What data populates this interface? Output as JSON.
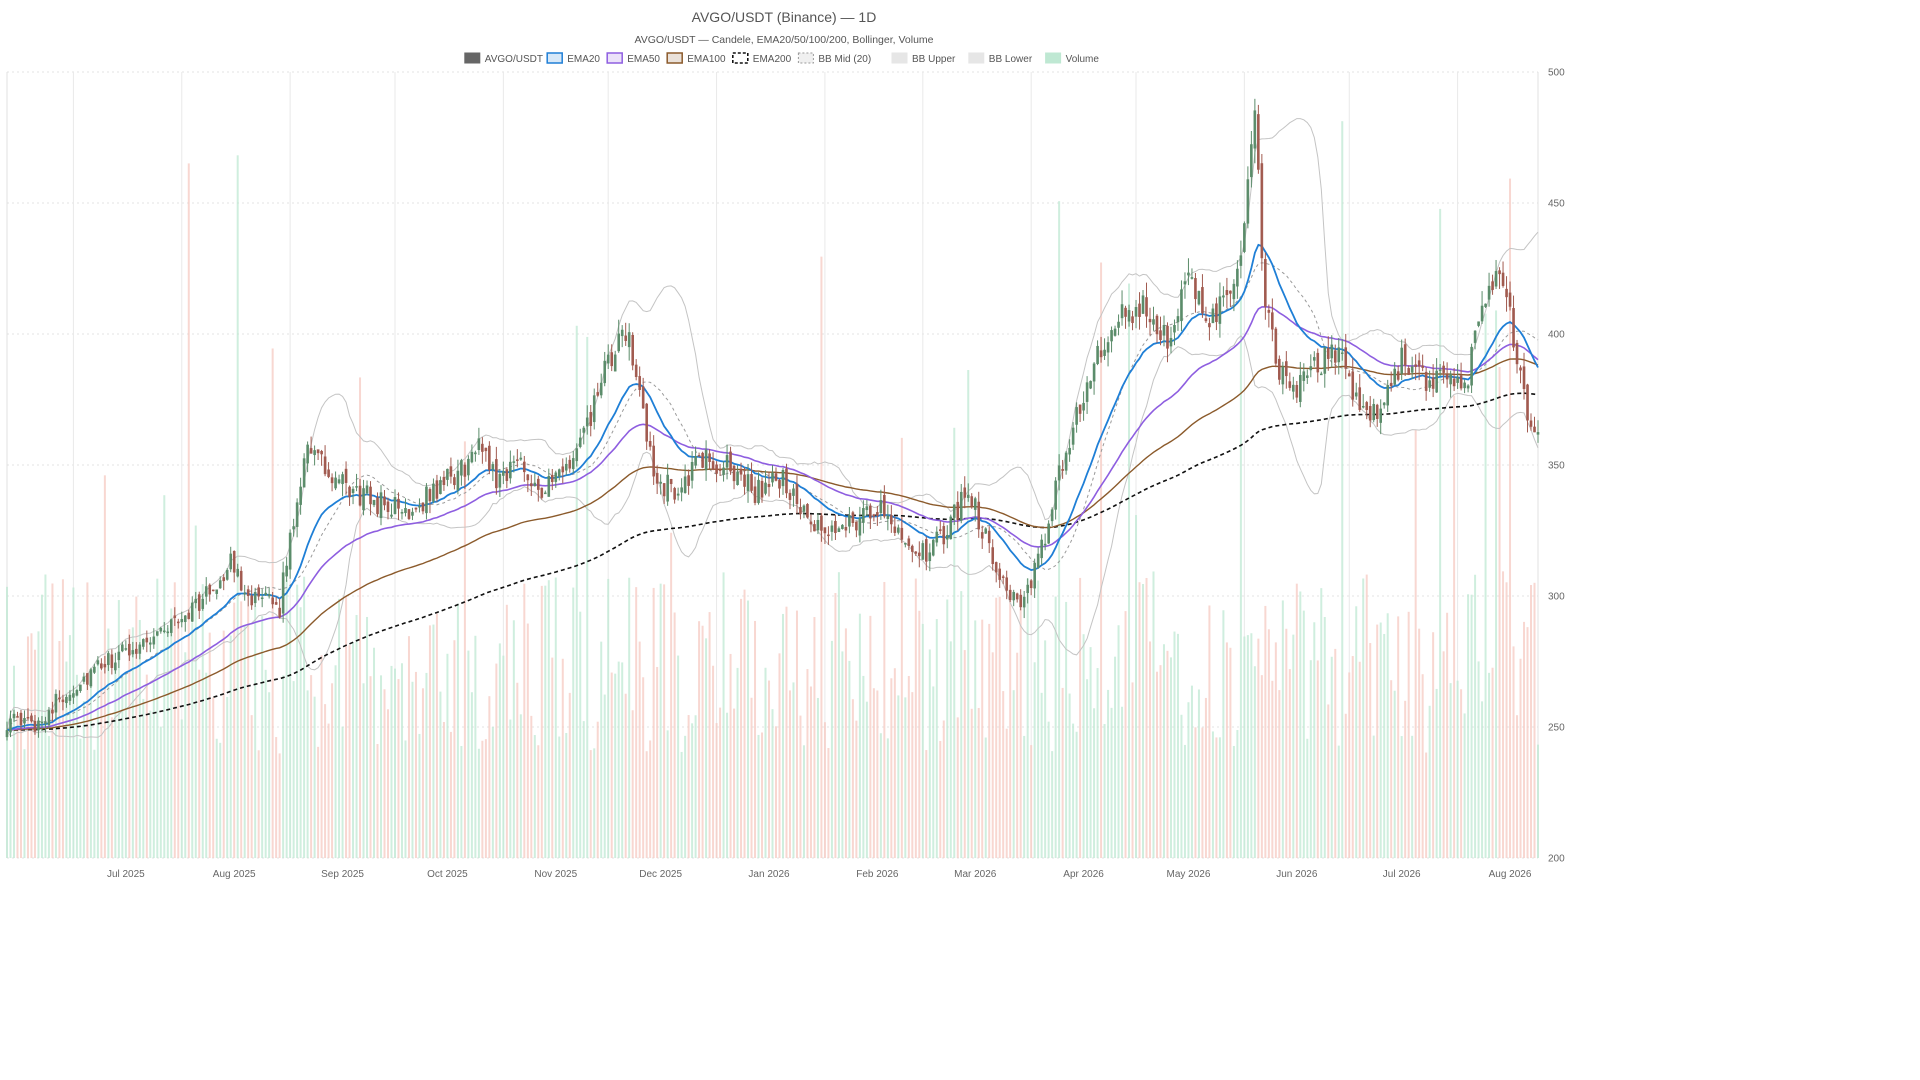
{
  "chart_data": {
    "type": "candlestick",
    "title": "AVGO/USDT (Binance) — 1D",
    "subtitle": "AVGO/USDT — Candele, EMA20/50/100/200, Bollinger, Volume",
    "legend": {
      "placement": "top-center",
      "entries": [
        {
          "label": "AVGO/USDT",
          "color": "#666666",
          "style": "solid-fill"
        },
        {
          "label": "EMA20",
          "color": "#1f7fd6",
          "style": "line"
        },
        {
          "label": "EMA50",
          "color": "#8e5ee0",
          "style": "line"
        },
        {
          "label": "EMA100",
          "color": "#8b5a2b",
          "style": "line"
        },
        {
          "label": "EMA200",
          "color": "#111111",
          "style": "dashed"
        },
        {
          "label": "BB Mid (20)",
          "color": "#9a9a9a",
          "style": "dashed-light"
        },
        {
          "label": "BB Upper",
          "color": "#bdbdbd",
          "style": "light"
        },
        {
          "label": "BB Lower",
          "color": "#bdbdbd",
          "style": "light"
        },
        {
          "label": "Volume",
          "color": "#bfe8d3",
          "style": "light-green"
        }
      ]
    },
    "x_axis": {
      "labels": [
        "Jul 2025",
        "Aug 2025",
        "Sep 2025",
        "Oct 2025",
        "Nov 2025",
        "Dec 2025",
        "Jan 2026",
        "Feb 2026",
        "Mar 2026",
        "Apr 2026",
        "May 2026",
        "Jun 2026",
        "Jul 2026",
        "Aug 2026"
      ],
      "range": [
        "2025-06-12",
        "2026-08-24"
      ]
    },
    "y_axis": {
      "position": "right",
      "ticks": [
        200,
        250,
        300,
        350,
        400,
        450,
        500
      ],
      "ylim": [
        200,
        500
      ]
    },
    "grid": true,
    "colors": {
      "up_candle": "#5b8c6a",
      "down_candle": "#a15a4f",
      "volume_up": "#bfe8d3",
      "volume_down": "#f6c9c1",
      "ema20": "#1f7fd6",
      "ema50": "#8e5ee0",
      "ema100": "#8b5a2b",
      "ema200": "#111111",
      "bollinger": "#c4c4c4"
    },
    "close_keypoints": [
      [
        "2025-06-12",
        252
      ],
      [
        "2025-06-20",
        251
      ],
      [
        "2025-06-28",
        262
      ],
      [
        "2025-07-08",
        272
      ],
      [
        "2025-07-20",
        282
      ],
      [
        "2025-07-30",
        290
      ],
      [
        "2025-08-08",
        300
      ],
      [
        "2025-08-15",
        312
      ],
      [
        "2025-08-22",
        298
      ],
      [
        "2025-08-29",
        296
      ],
      [
        "2025-09-01",
        322
      ],
      [
        "2025-09-06",
        360
      ],
      [
        "2025-09-12",
        345
      ],
      [
        "2025-09-18",
        340
      ],
      [
        "2025-09-26",
        336
      ],
      [
        "2025-10-04",
        332
      ],
      [
        "2025-10-12",
        340
      ],
      [
        "2025-10-20",
        348
      ],
      [
        "2025-10-26",
        358
      ],
      [
        "2025-10-30",
        345
      ],
      [
        "2025-11-06",
        352
      ],
      [
        "2025-11-12",
        340
      ],
      [
        "2025-11-18",
        346
      ],
      [
        "2025-11-24",
        360
      ],
      [
        "2025-11-30",
        385
      ],
      [
        "2025-12-04",
        395
      ],
      [
        "2025-12-07",
        402
      ],
      [
        "2025-12-10",
        375
      ],
      [
        "2025-12-14",
        345
      ],
      [
        "2025-12-20",
        340
      ],
      [
        "2025-12-28",
        352
      ],
      [
        "2026-01-06",
        348
      ],
      [
        "2026-01-12",
        340
      ],
      [
        "2026-01-20",
        345
      ],
      [
        "2026-01-26",
        330
      ],
      [
        "2026-02-01",
        322
      ],
      [
        "2026-02-06",
        328
      ],
      [
        "2026-02-12",
        330
      ],
      [
        "2026-02-18",
        334
      ],
      [
        "2026-02-24",
        322
      ],
      [
        "2026-03-02",
        315
      ],
      [
        "2026-03-08",
        325
      ],
      [
        "2026-03-14",
        342
      ],
      [
        "2026-03-20",
        318
      ],
      [
        "2026-03-26",
        302
      ],
      [
        "2026-03-30",
        296
      ],
      [
        "2026-04-04",
        318
      ],
      [
        "2026-04-09",
        345
      ],
      [
        "2026-04-14",
        370
      ],
      [
        "2026-04-20",
        390
      ],
      [
        "2026-04-26",
        405
      ],
      [
        "2026-05-04",
        410
      ],
      [
        "2026-05-10",
        400
      ],
      [
        "2026-05-16",
        418
      ],
      [
        "2026-05-22",
        408
      ],
      [
        "2026-05-28",
        412
      ],
      [
        "2026-06-01",
        440
      ],
      [
        "2026-06-04",
        482
      ],
      [
        "2026-06-07",
        410
      ],
      [
        "2026-06-11",
        385
      ],
      [
        "2026-06-16",
        378
      ],
      [
        "2026-06-22",
        388
      ],
      [
        "2026-06-28",
        395
      ],
      [
        "2026-07-04",
        372
      ],
      [
        "2026-07-10",
        368
      ],
      [
        "2026-07-16",
        392
      ],
      [
        "2026-07-22",
        382
      ],
      [
        "2026-07-28",
        386
      ],
      [
        "2026-08-03",
        378
      ],
      [
        "2026-08-08",
        415
      ],
      [
        "2026-08-13",
        424
      ],
      [
        "2026-08-17",
        400
      ],
      [
        "2026-08-21",
        370
      ],
      [
        "2026-08-24",
        364
      ]
    ],
    "volume_range": [
      0,
      300
    ]
  }
}
